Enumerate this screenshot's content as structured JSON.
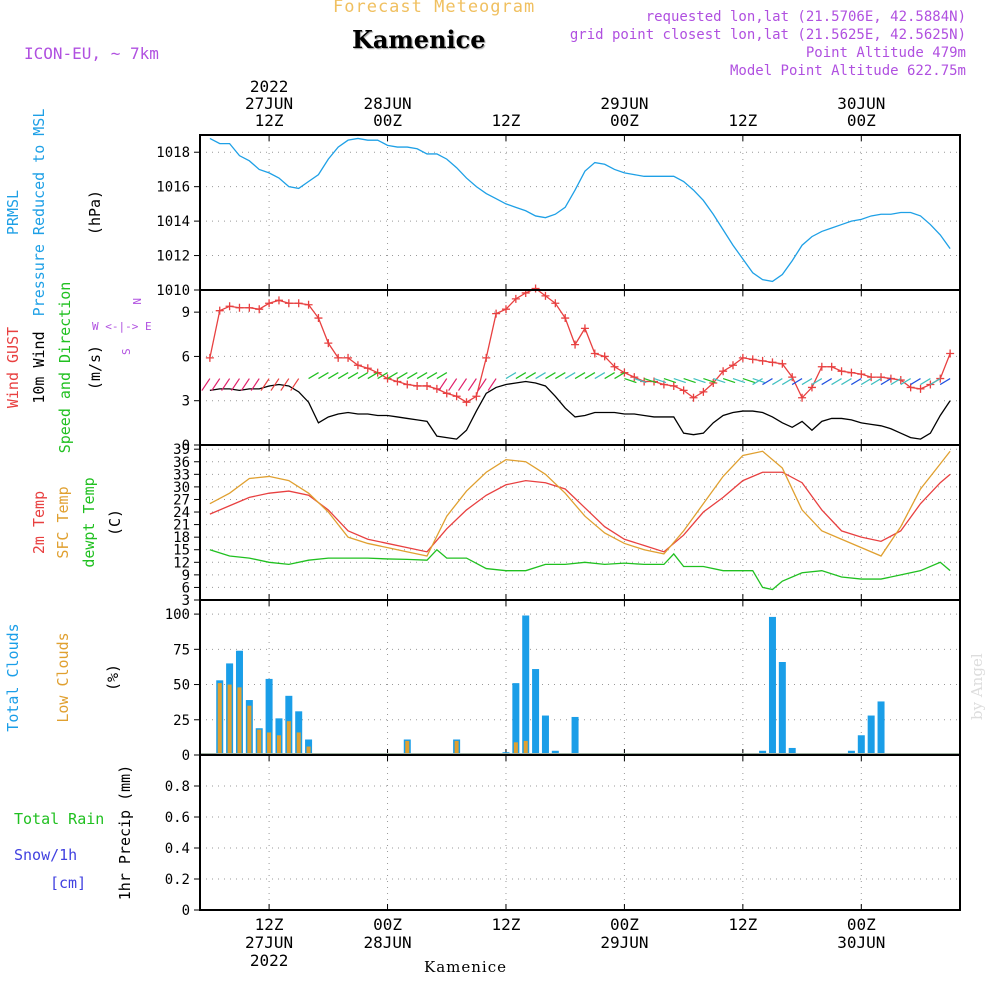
{
  "header": {
    "product": "Forecast Meteogram",
    "location": "Kamenice",
    "model": "ICON-EU, ~ 7km",
    "requested": "requested lon,lat (21.5706E, 42.5884N)",
    "gridpoint": "grid point closest lon,lat (21.5625E, 42.5625N)",
    "point_altitude": "Point Altitude 479m",
    "model_altitude": "Model Point Altitude 622.75m",
    "footer_location": "Kamenice",
    "watermark": "by Angel"
  },
  "colors": {
    "pressure": "#1ea0e6",
    "gust": "#e84040",
    "wind": "#000000",
    "temp": "#e84040",
    "sfc": "#e0a030",
    "dewpt": "#20c020",
    "total_clouds": "#1a9ee8",
    "low_clouds": "#e0a030",
    "rain": "#20c020",
    "snow": "#4040e0",
    "label_purple": "#b050e0",
    "header_orange": "#f0c060"
  },
  "time_axis": {
    "top_labels": [
      {
        "hour": 12,
        "lines": [
          "2022",
          "27JUN",
          "12Z"
        ]
      },
      {
        "hour": 24,
        "lines": [
          "28JUN",
          "00Z"
        ]
      },
      {
        "hour": 36,
        "lines": [
          "12Z"
        ]
      },
      {
        "hour": 48,
        "lines": [
          "29JUN",
          "00Z"
        ]
      },
      {
        "hour": 60,
        "lines": [
          "12Z"
        ]
      },
      {
        "hour": 72,
        "lines": [
          "30JUN",
          "00Z"
        ]
      }
    ],
    "bottom_labels": [
      {
        "hour": 12,
        "lines": [
          "12Z",
          "27JUN",
          "2022"
        ]
      },
      {
        "hour": 24,
        "lines": [
          "00Z",
          "28JUN"
        ]
      },
      {
        "hour": 36,
        "lines": [
          "12Z"
        ]
      },
      {
        "hour": 48,
        "lines": [
          "00Z",
          "29JUN"
        ]
      },
      {
        "hour": 60,
        "lines": [
          "12Z"
        ]
      },
      {
        "hour": 72,
        "lines": [
          "00Z",
          "30JUN"
        ]
      }
    ]
  },
  "chart_data": [
    {
      "type": "line",
      "title": "PRMSL Pressure Reduced to MSL",
      "ylabel": "(hPa)",
      "ylabel_lines": [
        "PRMSL",
        "Pressure Reduced to MSL"
      ],
      "unit_label": "(hPa)",
      "ylim": [
        1010,
        1019
      ],
      "yticks": [
        1010,
        1012,
        1014,
        1016,
        1018
      ],
      "grid": true,
      "series": [
        {
          "color_key": "pressure",
          "x": [
            6,
            7,
            8,
            9,
            10,
            11,
            12,
            13,
            14,
            15,
            16,
            17,
            18,
            19,
            20,
            21,
            22,
            23,
            24,
            25,
            26,
            27,
            28,
            29,
            30,
            31,
            32,
            33,
            34,
            35,
            36,
            37,
            38,
            39,
            40,
            41,
            42,
            43,
            44,
            45,
            46,
            47,
            48,
            49,
            50,
            51,
            52,
            53,
            54,
            55,
            56,
            57,
            58,
            59,
            60,
            61,
            62,
            63,
            64,
            65,
            66,
            67,
            68,
            69,
            70,
            71,
            72,
            73,
            74,
            75,
            76,
            77,
            78,
            79,
            80,
            81
          ],
          "y": [
            1018.8,
            1018.5,
            1018.5,
            1017.8,
            1017.5,
            1017.0,
            1016.8,
            1016.5,
            1016.0,
            1015.9,
            1016.3,
            1016.7,
            1017.6,
            1018.3,
            1018.7,
            1018.8,
            1018.7,
            1018.7,
            1018.4,
            1018.3,
            1018.3,
            1018.2,
            1017.9,
            1017.9,
            1017.6,
            1017.1,
            1016.5,
            1016.0,
            1015.6,
            1015.3,
            1015.0,
            1014.8,
            1014.6,
            1014.3,
            1014.2,
            1014.4,
            1014.8,
            1015.8,
            1016.9,
            1017.4,
            1017.3,
            1017.0,
            1016.8,
            1016.7,
            1016.6,
            1016.6,
            1016.6,
            1016.6,
            1016.3,
            1015.8,
            1015.2,
            1014.4,
            1013.5,
            1012.6,
            1011.8,
            1011.0,
            1010.6,
            1010.5,
            1010.9,
            1011.7,
            1012.6,
            1013.1,
            1013.4,
            1013.6,
            1013.8,
            1014.0,
            1014.1,
            1014.3,
            1014.4,
            1014.4,
            1014.5,
            1014.5,
            1014.3,
            1013.8,
            1013.2,
            1012.4
          ]
        }
      ]
    },
    {
      "type": "line",
      "title": "Wind GUST 10m Wind Speed and Direction",
      "ylabel_lines": [
        "Wind GUST",
        "10m Wind",
        "Speed and Direction"
      ],
      "unit_label": "(m/s)",
      "compass": [
        "N",
        "W <-|-> E",
        "S"
      ],
      "ylim": [
        0,
        10.5
      ],
      "yticks": [
        0,
        3,
        6,
        9
      ],
      "grid": true,
      "series": [
        {
          "name": "Wind GUST",
          "color_key": "gust",
          "marker": "+",
          "x": [
            6,
            7,
            8,
            9,
            10,
            11,
            12,
            13,
            14,
            15,
            16,
            17,
            18,
            19,
            20,
            21,
            22,
            23,
            24,
            25,
            26,
            27,
            28,
            29,
            30,
            31,
            32,
            33,
            34,
            35,
            36,
            37,
            38,
            39,
            40,
            41,
            42,
            43,
            44,
            45,
            46,
            47,
            48,
            49,
            50,
            51,
            52,
            53,
            54,
            55,
            56,
            57,
            58,
            59,
            60,
            61,
            62,
            63,
            64,
            65,
            66,
            67,
            68,
            69,
            70,
            71,
            72,
            73,
            74,
            75,
            76,
            77,
            78,
            79,
            80,
            81
          ],
          "y": [
            5.9,
            9.1,
            9.4,
            9.3,
            9.3,
            9.2,
            9.6,
            9.8,
            9.6,
            9.6,
            9.5,
            8.6,
            6.9,
            5.9,
            5.9,
            5.4,
            5.2,
            4.9,
            4.5,
            4.3,
            4.1,
            4.0,
            4.0,
            3.8,
            3.5,
            3.3,
            2.9,
            3.3,
            5.9,
            8.9,
            9.2,
            9.9,
            10.3,
            10.6,
            10.1,
            9.6,
            8.6,
            6.8,
            7.9,
            6.2,
            6.0,
            5.3,
            4.9,
            4.6,
            4.3,
            4.3,
            4.1,
            4.0,
            3.7,
            3.2,
            3.6,
            4.2,
            5.0,
            5.4,
            5.9,
            5.8,
            5.7,
            5.6,
            5.5,
            4.6,
            3.2,
            3.9,
            5.3,
            5.3,
            5.0,
            4.9,
            4.8,
            4.6,
            4.6,
            4.5,
            4.4,
            3.9,
            3.8,
            4.1,
            4.5,
            6.2
          ]
        },
        {
          "name": "10m Wind",
          "color_key": "wind",
          "x": [
            6,
            7,
            8,
            9,
            10,
            11,
            12,
            13,
            14,
            15,
            16,
            17,
            18,
            19,
            20,
            21,
            22,
            23,
            24,
            25,
            26,
            27,
            28,
            29,
            30,
            31,
            32,
            33,
            34,
            35,
            36,
            37,
            38,
            39,
            40,
            41,
            42,
            43,
            44,
            45,
            46,
            47,
            48,
            49,
            50,
            51,
            52,
            53,
            54,
            55,
            56,
            57,
            58,
            59,
            60,
            61,
            62,
            63,
            64,
            65,
            66,
            67,
            68,
            69,
            70,
            71,
            72,
            73,
            74,
            75,
            76,
            77,
            78,
            79,
            80,
            81
          ],
          "y": [
            3.7,
            3.8,
            3.8,
            3.7,
            3.8,
            3.8,
            4.0,
            4.1,
            4.0,
            3.6,
            2.9,
            1.5,
            1.9,
            2.1,
            2.2,
            2.1,
            2.1,
            2.0,
            2.0,
            1.9,
            1.8,
            1.7,
            1.6,
            0.6,
            0.5,
            0.4,
            1.0,
            2.3,
            3.5,
            3.9,
            4.1,
            4.2,
            4.3,
            4.2,
            4.0,
            3.3,
            2.5,
            1.9,
            2.0,
            2.2,
            2.2,
            2.2,
            2.1,
            2.1,
            2.0,
            1.9,
            1.9,
            1.9,
            0.8,
            0.7,
            0.8,
            1.5,
            2.0,
            2.2,
            2.3,
            2.3,
            2.2,
            1.9,
            1.5,
            1.2,
            1.6,
            1.0,
            1.6,
            1.8,
            1.8,
            1.7,
            1.5,
            1.4,
            1.3,
            1.1,
            0.8,
            0.5,
            0.4,
            0.8,
            2.0,
            3.0
          ]
        }
      ]
    },
    {
      "type": "line",
      "title": "2m Temp SFC Temp dewpt Temp",
      "ylabel_lines": [
        "2m Temp",
        "SFC Temp",
        "dewpt Temp"
      ],
      "unit_label": "(C)",
      "ylim": [
        3,
        40
      ],
      "yticks": [
        3,
        6,
        9,
        12,
        15,
        18,
        21,
        24,
        27,
        30,
        33,
        36,
        39
      ],
      "grid": true,
      "series": [
        {
          "name": "2m Temp",
          "color_key": "temp",
          "x": [
            6,
            8,
            10,
            12,
            14,
            16,
            18,
            20,
            22,
            24,
            26,
            28,
            30,
            32,
            34,
            36,
            38,
            40,
            42,
            44,
            46,
            48,
            50,
            52,
            54,
            56,
            58,
            60,
            62,
            64,
            66,
            68,
            70,
            72,
            74,
            76,
            78,
            80,
            81
          ],
          "y": [
            23.5,
            25.5,
            27.5,
            28.5,
            29,
            28,
            24.5,
            19.5,
            17.5,
            16.5,
            15.5,
            14.5,
            20,
            24.5,
            28,
            30.5,
            31.5,
            31,
            29.5,
            25,
            20.5,
            17.5,
            16,
            14.5,
            18.5,
            24,
            27.5,
            31.5,
            33.5,
            33.5,
            31,
            24.5,
            19.5,
            18,
            17,
            19.5,
            26,
            31,
            33
          ]
        },
        {
          "name": "SFC Temp",
          "color_key": "sfc",
          "x": [
            6,
            8,
            10,
            12,
            14,
            16,
            18,
            20,
            22,
            24,
            26,
            28,
            30,
            32,
            34,
            36,
            38,
            40,
            42,
            44,
            46,
            48,
            50,
            52,
            54,
            56,
            58,
            60,
            62,
            64,
            66,
            68,
            70,
            72,
            74,
            76,
            78,
            80,
            81
          ],
          "y": [
            26,
            28.5,
            32,
            32.5,
            31.5,
            28.5,
            24,
            18,
            16.5,
            15.5,
            14.5,
            13.5,
            23,
            29,
            33.5,
            36.5,
            36,
            33,
            28.5,
            23,
            19,
            16.5,
            15,
            14,
            19.5,
            26,
            32.5,
            37.5,
            38.5,
            34.5,
            24.5,
            19.5,
            17.5,
            15.5,
            13.5,
            20.5,
            29.5,
            35.5,
            38.5
          ]
        },
        {
          "name": "dewpt Temp",
          "color_key": "dewpt",
          "x": [
            6,
            8,
            10,
            12,
            14,
            16,
            18,
            20,
            22,
            24,
            26,
            28,
            29,
            30,
            32,
            34,
            36,
            38,
            40,
            42,
            44,
            46,
            48,
            50,
            52,
            53,
            54,
            56,
            58,
            60,
            61,
            62,
            63,
            64,
            66,
            68,
            70,
            72,
            74,
            76,
            78,
            80,
            81
          ],
          "y": [
            15,
            13.5,
            13,
            12,
            11.5,
            12.5,
            13,
            13,
            13,
            12.8,
            12.7,
            12.5,
            15,
            13,
            13,
            10.5,
            10,
            10,
            11.5,
            11.5,
            12,
            11.5,
            11.8,
            11.5,
            11.5,
            14,
            11,
            11,
            10,
            10,
            10,
            6,
            5.5,
            7.5,
            9.5,
            10,
            8.5,
            8,
            8,
            9,
            10,
            12,
            10
          ]
        }
      ]
    },
    {
      "type": "bar",
      "title": "Total Clouds Low Clouds",
      "ylabel_lines": [
        "Total Clouds",
        "Low Clouds"
      ],
      "unit_label": "(%)",
      "ylim": [
        0,
        110
      ],
      "yticks": [
        0,
        25,
        50,
        75,
        100
      ],
      "grid": true,
      "series": [
        {
          "name": "Total Clouds",
          "color_key": "total_clouds",
          "x": [
            7,
            8,
            9,
            10,
            11,
            12,
            13,
            14,
            15,
            16,
            17,
            25,
            26,
            31,
            35,
            36,
            37,
            38,
            39,
            40,
            41,
            43,
            62,
            63,
            64,
            65,
            71,
            72,
            73,
            74
          ],
          "values": [
            53,
            65,
            74,
            39,
            19,
            54,
            26,
            42,
            31,
            11,
            1,
            1,
            11,
            11,
            1,
            2,
            51,
            99,
            61,
            28,
            3,
            27,
            3,
            98,
            66,
            5,
            3,
            14,
            28,
            38
          ]
        },
        {
          "name": "Low Clouds",
          "color_key": "low_clouds",
          "x": [
            7,
            8,
            9,
            10,
            11,
            12,
            13,
            14,
            15,
            16,
            25,
            26,
            31,
            37,
            38
          ],
          "values": [
            51,
            50,
            48,
            35,
            18,
            16,
            14,
            24,
            16,
            6,
            1,
            10,
            10,
            9,
            10
          ]
        }
      ]
    },
    {
      "type": "bar",
      "title": "1hr Precip (mm)",
      "ylabel_lines": [
        "Total  Rain",
        "Snow/1h",
        "[cm]"
      ],
      "unit_label": "1hr Precip (mm)",
      "ylim": [
        0,
        1.0
      ],
      "yticks": [
        0,
        0.2,
        0.4,
        0.6,
        0.8
      ],
      "grid": true,
      "series": []
    }
  ]
}
